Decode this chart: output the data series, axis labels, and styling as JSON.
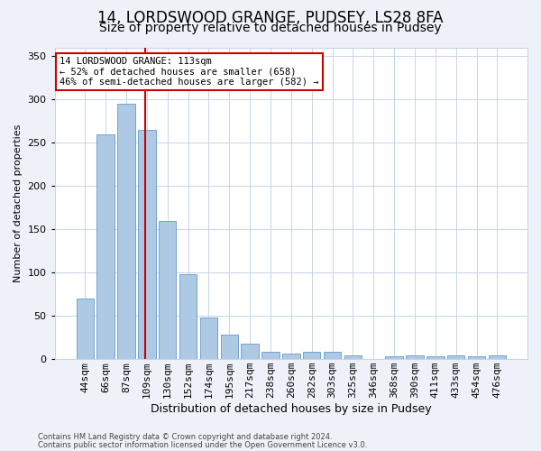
{
  "title1": "14, LORDSWOOD GRANGE, PUDSEY, LS28 8FA",
  "title2": "Size of property relative to detached houses in Pudsey",
  "xlabel": "Distribution of detached houses by size in Pudsey",
  "ylabel": "Number of detached properties",
  "categories": [
    "44sqm",
    "66sqm",
    "87sqm",
    "109sqm",
    "130sqm",
    "152sqm",
    "174sqm",
    "195sqm",
    "217sqm",
    "238sqm",
    "260sqm",
    "282sqm",
    "303sqm",
    "325sqm",
    "346sqm",
    "368sqm",
    "390sqm",
    "411sqm",
    "433sqm",
    "454sqm",
    "476sqm"
  ],
  "values": [
    70,
    260,
    295,
    265,
    160,
    98,
    48,
    28,
    18,
    9,
    6,
    8,
    9,
    4,
    0,
    3,
    4,
    3,
    4,
    3,
    4
  ],
  "bar_color": "#aec9e3",
  "bar_edge_color": "#6699cc",
  "vline_index": 3,
  "vline_color": "#cc0000",
  "annotation_text": "14 LORDSWOOD GRANGE: 113sqm\n← 52% of detached houses are smaller (658)\n46% of semi-detached houses are larger (582) →",
  "annotation_box_facecolor": "#ffffff",
  "annotation_box_edgecolor": "#cc0000",
  "ylim": [
    0,
    360
  ],
  "yticks": [
    0,
    50,
    100,
    150,
    200,
    250,
    300,
    350
  ],
  "footer1": "Contains HM Land Registry data © Crown copyright and database right 2024.",
  "footer2": "Contains public sector information licensed under the Open Government Licence v3.0.",
  "bg_color": "#eef2f8",
  "plot_bg_color": "#ffffff",
  "grid_color": "#c5d5e8",
  "title1_fontsize": 12,
  "title2_fontsize": 10,
  "xlabel_fontsize": 9,
  "ylabel_fontsize": 8,
  "tick_fontsize": 8,
  "annot_fontsize": 7.5,
  "footer_fontsize": 6
}
